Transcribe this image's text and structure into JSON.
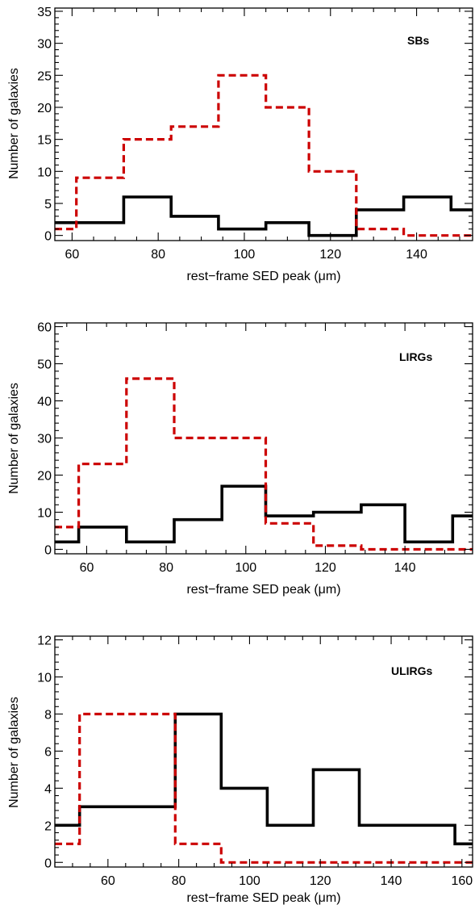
{
  "chart_data": [
    {
      "type": "histogram",
      "label": "SBs",
      "xlabel": "rest−frame SED peak (μm)",
      "ylabel": "Number of galaxies",
      "xlim": [
        56,
        153
      ],
      "ylim": [
        -0.8,
        35.5
      ],
      "xticks": [
        60,
        80,
        100,
        120,
        140
      ],
      "yticks": [
        0,
        5,
        10,
        15,
        20,
        25,
        30,
        35
      ],
      "grid": false,
      "series": [
        {
          "style": "solid",
          "color": "#000000",
          "edges": [
            56,
            72,
            83,
            94,
            105,
            115,
            126,
            137,
            148,
            153
          ],
          "counts": [
            2,
            6,
            3,
            1,
            2,
            0,
            4,
            6,
            4
          ]
        },
        {
          "style": "dashed",
          "color": "#cc0000",
          "edges": [
            56,
            61,
            72,
            83,
            94,
            105,
            115,
            126,
            137,
            148,
            153
          ],
          "counts": [
            1,
            9,
            15,
            17,
            25,
            20,
            10,
            1,
            0,
            0
          ]
        }
      ]
    },
    {
      "type": "histogram",
      "label": "LIRGs",
      "xlabel": "rest−frame SED peak (μm)",
      "ylabel": "Number of galaxies",
      "xlim": [
        52,
        157
      ],
      "ylim": [
        -1.2,
        61
      ],
      "xticks": [
        60,
        80,
        100,
        120,
        140
      ],
      "yticks": [
        0,
        10,
        20,
        30,
        40,
        50,
        60
      ],
      "grid": false,
      "series": [
        {
          "style": "solid",
          "color": "#000000",
          "edges": [
            52,
            58,
            70,
            82,
            94,
            105,
            117,
            129,
            140,
            152,
            157
          ],
          "counts": [
            2,
            6,
            2,
            8,
            17,
            9,
            10,
            12,
            2,
            9
          ]
        },
        {
          "style": "dashed",
          "color": "#cc0000",
          "edges": [
            52,
            58,
            70,
            82,
            94,
            105,
            117,
            129,
            140,
            152,
            157
          ],
          "counts": [
            6,
            23,
            46,
            30,
            30,
            7,
            1,
            0,
            0,
            0
          ]
        }
      ]
    },
    {
      "type": "histogram",
      "label": "ULIRGs",
      "xlabel": "rest−frame SED peak (μm)",
      "ylabel": "Number of galaxies",
      "xlim": [
        45,
        163
      ],
      "ylim": [
        -0.25,
        12.2
      ],
      "xticks": [
        60,
        80,
        100,
        120,
        140,
        160
      ],
      "yticks": [
        0,
        2,
        4,
        6,
        8,
        10,
        12
      ],
      "grid": false,
      "series": [
        {
          "style": "solid",
          "color": "#000000",
          "edges": [
            45,
            52,
            79,
            92,
            105,
            118,
            131,
            145,
            158,
            163
          ],
          "counts": [
            2,
            3,
            8,
            4,
            2,
            5,
            2,
            2,
            1
          ]
        },
        {
          "style": "dashed",
          "color": "#cc0000",
          "edges": [
            45,
            52,
            79,
            92,
            105,
            118,
            131,
            145,
            158,
            163
          ],
          "counts": [
            1,
            8,
            1,
            0,
            0,
            0,
            0,
            0,
            0
          ]
        }
      ]
    }
  ]
}
